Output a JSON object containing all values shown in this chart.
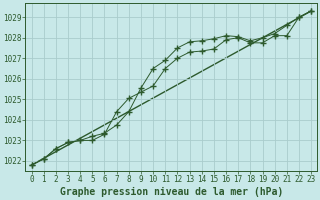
{
  "title": "Graphe pression niveau de la mer (hPa)",
  "background_color": "#c8e8e8",
  "plot_bg_color": "#c8e8e8",
  "grid_color": "#aacccc",
  "line_color": "#2d5a2d",
  "xlim": [
    -0.5,
    23.5
  ],
  "ylim": [
    1021.5,
    1029.7
  ],
  "yticks": [
    1022,
    1023,
    1024,
    1025,
    1026,
    1027,
    1028,
    1029
  ],
  "xticks": [
    0,
    1,
    2,
    3,
    4,
    5,
    6,
    7,
    8,
    9,
    10,
    11,
    12,
    13,
    14,
    15,
    16,
    17,
    18,
    19,
    20,
    21,
    22,
    23
  ],
  "series1_x": [
    0,
    1,
    2,
    3,
    4,
    5,
    6,
    7,
    8,
    9,
    10,
    11,
    12,
    13,
    14,
    15,
    16,
    17,
    18,
    19,
    20,
    21,
    22,
    23
  ],
  "series1_y": [
    1021.8,
    1022.1,
    1022.6,
    1022.9,
    1023.0,
    1023.2,
    1023.35,
    1023.75,
    1024.4,
    1025.55,
    1026.5,
    1026.9,
    1027.5,
    1027.8,
    1027.85,
    1027.95,
    1028.1,
    1028.05,
    1027.85,
    1028.0,
    1028.2,
    1028.6,
    1029.0,
    1029.3
  ],
  "series2_x": [
    0,
    1,
    2,
    3,
    4,
    5,
    6,
    7,
    8,
    9,
    10,
    11,
    12,
    13,
    14,
    15,
    16,
    17,
    18,
    19,
    20,
    21,
    22,
    23
  ],
  "series2_y": [
    1021.8,
    1022.1,
    1022.6,
    1022.9,
    1023.0,
    1023.0,
    1023.3,
    1024.4,
    1025.05,
    1025.35,
    1025.65,
    1026.5,
    1027.0,
    1027.3,
    1027.35,
    1027.45,
    1027.9,
    1028.0,
    1027.75,
    1027.75,
    1028.1,
    1028.1,
    1029.0,
    1029.3
  ],
  "trend_x": [
    0,
    23
  ],
  "trend_y": [
    1021.8,
    1029.3
  ],
  "title_fontsize": 7,
  "tick_fontsize": 5.5
}
